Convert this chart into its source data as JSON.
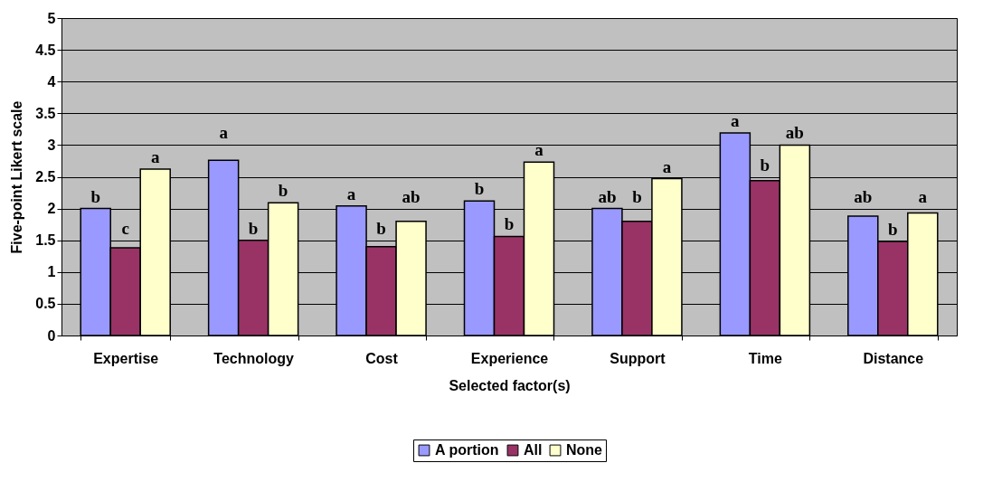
{
  "chart_data": {
    "type": "bar",
    "xlabel": "Selected factor(s)",
    "ylabel": "Five-point Likert scale",
    "categories": [
      "Expertise",
      "Technology",
      "Cost",
      "Experience",
      "Support",
      "Time",
      "Distance"
    ],
    "series": [
      {
        "name": "A portion",
        "color": "#9999ff",
        "values": [
          2.0,
          2.76,
          2.04,
          2.12,
          2.0,
          3.19,
          1.88
        ]
      },
      {
        "name": "All",
        "color": "#993366",
        "values": [
          1.38,
          1.5,
          1.4,
          1.56,
          1.8,
          2.44,
          1.48
        ]
      },
      {
        "name": "None",
        "color": "#ffffcc",
        "values": [
          2.62,
          2.09,
          1.8,
          2.73,
          2.47,
          3.0,
          1.93
        ]
      }
    ],
    "ylim": [
      0,
      5
    ],
    "yticks": [
      0,
      0.5,
      1,
      1.5,
      2,
      2.5,
      3,
      3.5,
      4,
      4.5,
      5
    ],
    "grid": "y",
    "legend": "bottom",
    "annotations": [
      "b",
      "c",
      "a",
      "a",
      "b",
      "b",
      "a",
      "b",
      "ab",
      "b",
      "b",
      "a",
      "ab",
      "b",
      "a",
      "a",
      "b",
      "ab",
      "ab",
      "b",
      "a"
    ]
  }
}
